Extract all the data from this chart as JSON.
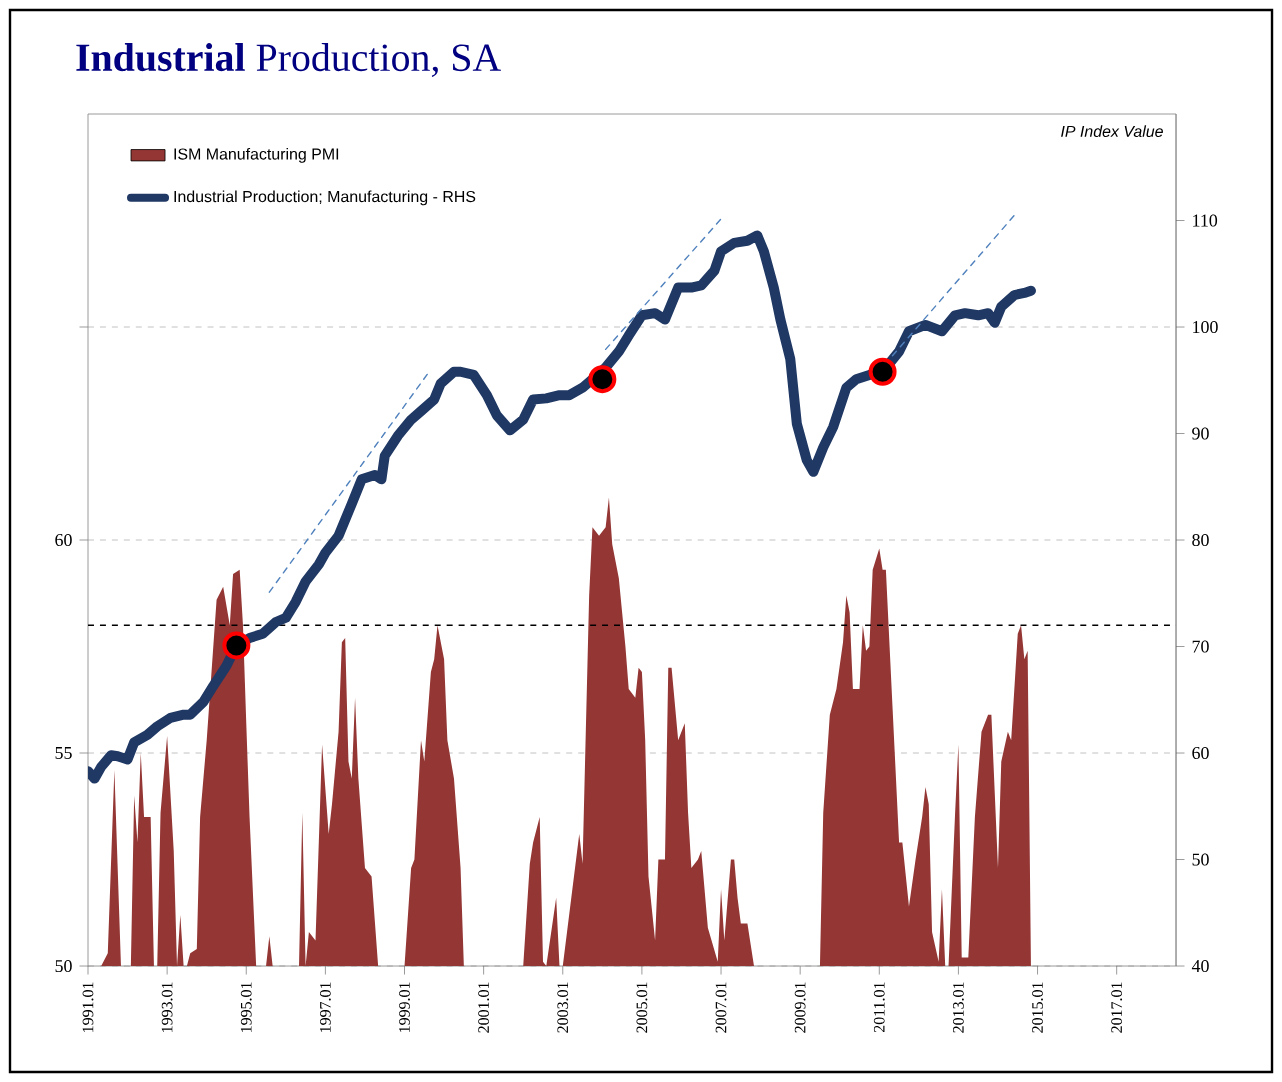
{
  "chart_data": {
    "type": "area",
    "title": "**Industrial** Production, SA",
    "y2label": "IP Index Value",
    "xlim": [
      "1991-01",
      "2018-07"
    ],
    "xticks": [
      {
        "value": "1991-01",
        "label": "1991.01"
      },
      {
        "value": "1993-01",
        "label": "1993.01"
      },
      {
        "value": "1995-01",
        "label": "1995.01"
      },
      {
        "value": "1997-01",
        "label": "1997.01"
      },
      {
        "value": "1999-01",
        "label": "1999.01"
      },
      {
        "value": "2001-01",
        "label": "2001.01"
      },
      {
        "value": "2003-01",
        "label": "2003.01"
      },
      {
        "value": "2005-01",
        "label": "2005.01"
      },
      {
        "value": "2007-01",
        "label": "2007.01"
      },
      {
        "value": "2009-01",
        "label": "2009.01"
      },
      {
        "value": "2011-01",
        "label": "2011.01"
      },
      {
        "value": "2013-01",
        "label": "2013.01"
      },
      {
        "value": "2015-01",
        "label": "2015.01"
      },
      {
        "value": "2017-01",
        "label": "2017.01"
      }
    ],
    "ylim": [
      50,
      70
    ],
    "yticks": [
      50,
      55,
      60,
      {
        "value": 65,
        "label": null
      }
    ],
    "y2lim": [
      40,
      120
    ],
    "y2ticks": [
      40,
      50,
      60,
      70,
      80,
      90,
      100,
      110
    ],
    "grid": "y",
    "legend": "top left",
    "ref_lines": [
      {
        "axis": "y",
        "value": 58,
        "color": "#000000",
        "line_style": "dashed"
      }
    ],
    "series": [
      {
        "name": "ISM Manufacturing PMI",
        "color": "#943634",
        "x": [
          "1991-05",
          "1991-07",
          "1991-09",
          "1991-11",
          "1992-02",
          "1992-03",
          "1992-04",
          "1992-05",
          "1992-06",
          "1992-08",
          "1992-09",
          "1992-10",
          "1992-11",
          "1993-01",
          "1993-03",
          "1993-04",
          "1993-05",
          "1993-06",
          "1993-07",
          "1993-08",
          "1993-10",
          "1993-11",
          "1994-01",
          "1994-04",
          "1994-06",
          "1994-08",
          "1994-09",
          "1994-11",
          "1994-12",
          "1995-01",
          "1995-02",
          "1995-04",
          "1995-07",
          "1995-08",
          "1995-09",
          "1996-05",
          "1996-06",
          "1996-07",
          "1996-08",
          "1996-10",
          "1996-12",
          "1997-02",
          "1997-03",
          "1997-05",
          "1997-06",
          "1997-07",
          "1997-08",
          "1997-09",
          "1997-10",
          "1997-11",
          "1998-01",
          "1998-03",
          "1998-05",
          "1999-01",
          "1999-03",
          "1999-04",
          "1999-06",
          "1999-07",
          "1999-09",
          "1999-10",
          "1999-11",
          "2000-01",
          "2000-02",
          "2000-04",
          "2000-06",
          "2000-07",
          "2002-01",
          "2002-03",
          "2002-04",
          "2002-06",
          "2002-07",
          "2002-08",
          "2002-11",
          "2002-12",
          "2003-01",
          "2003-06",
          "2003-07",
          "2003-09",
          "2003-10",
          "2003-12",
          "2004-02",
          "2004-03",
          "2004-04",
          "2004-06",
          "2004-08",
          "2004-09",
          "2004-11",
          "2004-12",
          "2005-01",
          "2005-02",
          "2005-03",
          "2005-05",
          "2005-06",
          "2005-08",
          "2005-09",
          "2005-10",
          "2005-12",
          "2006-02",
          "2006-03",
          "2006-04",
          "2006-06",
          "2006-07",
          "2006-09",
          "2006-12",
          "2007-01",
          "2007-02",
          "2007-04",
          "2007-05",
          "2007-06",
          "2007-07",
          "2007-09",
          "2007-11",
          "2009-07",
          "2009-08",
          "2009-10",
          "2009-12",
          "2010-02",
          "2010-03",
          "2010-04",
          "2010-05",
          "2010-07",
          "2010-08",
          "2010-09",
          "2010-10",
          "2010-11",
          "2011-01",
          "2011-02",
          "2011-03",
          "2011-05",
          "2011-07",
          "2011-08",
          "2011-10",
          "2011-12",
          "2012-02",
          "2012-03",
          "2012-04",
          "2012-05",
          "2012-07",
          "2012-08",
          "2012-09",
          "2012-10",
          "2012-12",
          "2013-01",
          "2013-02",
          "2013-04",
          "2013-06",
          "2013-08",
          "2013-10",
          "2013-11",
          "2014-01",
          "2014-02",
          "2014-04",
          "2014-05",
          "2014-07",
          "2014-08",
          "2014-09",
          "2014-10",
          "2014-11"
        ],
        "values": [
          50,
          50.3,
          54.6,
          50,
          50,
          54.0,
          52.9,
          55.0,
          53.5,
          53.5,
          50,
          50,
          53.6,
          55.4,
          52.7,
          50,
          51.2,
          50,
          50,
          50.3,
          50.4,
          53.5,
          55.3,
          58.6,
          58.9,
          58.0,
          59.2,
          59.3,
          58.0,
          55.7,
          53.5,
          50,
          50,
          50.7,
          50,
          50,
          53.6,
          50,
          50.8,
          50.6,
          55.2,
          53.1,
          53.8,
          55.5,
          57.6,
          57.7,
          54.8,
          54.4,
          56.3,
          54.4,
          52.3,
          52.1,
          50,
          50,
          52.3,
          52.5,
          55.3,
          54.8,
          56.9,
          57.2,
          58.0,
          57.2,
          55.3,
          54.4,
          52.3,
          50,
          50,
          52.4,
          52.9,
          53.5,
          50.1,
          50,
          51.6,
          50,
          50,
          53.1,
          52.4,
          58.7,
          60.3,
          60.1,
          60.3,
          61.0,
          59.9,
          59.1,
          57.5,
          56.5,
          56.3,
          57.0,
          56.9,
          55.3,
          52.1,
          50.6,
          52.5,
          52.5,
          57.0,
          57.0,
          55.3,
          55.7,
          53.6,
          52.3,
          52.5,
          52.7,
          50.9,
          50.1,
          51.8,
          50.6,
          52.5,
          52.5,
          51.6,
          51.0,
          51.0,
          50,
          50,
          53.6,
          55.9,
          56.5,
          57.6,
          58.7,
          58.3,
          56.5,
          56.5,
          58.0,
          57.4,
          57.5,
          59.3,
          59.8,
          59.3,
          59.3,
          56.1,
          52.9,
          52.9,
          51.4,
          52.5,
          53.5,
          54.2,
          53.8,
          50.8,
          50.1,
          51.8,
          50,
          50,
          53.6,
          55.2,
          50.2,
          50.2,
          53.5,
          55.5,
          55.9,
          55.9,
          52.3,
          54.8,
          55.5,
          55.3,
          57.8,
          58.0,
          57.2,
          57.4,
          50
        ]
      },
      {
        "name": "Industrial Production; Manufacturing - RHS",
        "type": "line",
        "axis": "y2",
        "color": "#1f3864",
        "x": [
          "1991-01",
          "1991-03",
          "1991-05",
          "1991-08",
          "1991-10",
          "1992-01",
          "1992-03",
          "1992-07",
          "1992-10",
          "1993-02",
          "1993-06",
          "1993-08",
          "1993-12",
          "1994-03",
          "1994-07",
          "1994-10",
          "1995-02",
          "1995-06",
          "1995-10",
          "1996-01",
          "1996-04",
          "1996-07",
          "1996-11",
          "1997-01",
          "1997-05",
          "1997-09",
          "1997-12",
          "1998-04",
          "1998-06",
          "1998-07",
          "1998-11",
          "1999-03",
          "1999-06",
          "1999-10",
          "1999-12",
          "2000-04",
          "2000-06",
          "2000-10",
          "2001-02",
          "2001-05",
          "2001-09",
          "2002-01",
          "2002-04",
          "2002-08",
          "2002-12",
          "2003-03",
          "2003-07",
          "2003-10",
          "2004-02",
          "2004-06",
          "2004-09",
          "2005-01",
          "2005-05",
          "2005-08",
          "2005-12",
          "2006-04",
          "2006-07",
          "2006-11",
          "2007-01",
          "2007-05",
          "2007-09",
          "2007-12",
          "2008-02",
          "2008-05",
          "2008-07",
          "2008-10",
          "2008-12",
          "2009-03",
          "2009-05",
          "2009-08",
          "2009-11",
          "2010-03",
          "2010-06",
          "2010-10",
          "2011-02",
          "2011-07",
          "2011-10",
          "2012-03",
          "2012-08",
          "2012-12",
          "2013-03",
          "2013-07",
          "2013-10",
          "2013-12",
          "2014-02",
          "2014-06",
          "2014-09",
          "2014-11"
        ],
        "values": [
          58.3,
          57.6,
          58.7,
          59.8,
          59.7,
          59.4,
          61.0,
          61.7,
          62.5,
          63.3,
          63.6,
          63.6,
          64.8,
          66.3,
          68.2,
          70.1,
          70.8,
          71.2,
          72.3,
          72.7,
          74.2,
          76.1,
          77.7,
          78.8,
          80.4,
          83.4,
          85.7,
          86.1,
          85.7,
          87.9,
          89.8,
          91.3,
          92.1,
          93.2,
          94.7,
          95.8,
          95.8,
          95.5,
          93.6,
          91.7,
          90.3,
          91.3,
          93.2,
          93.3,
          93.6,
          93.6,
          94.3,
          95.1,
          96.2,
          97.7,
          99.2,
          101.1,
          101.3,
          100.7,
          103.7,
          103.7,
          103.9,
          105.3,
          107.1,
          107.9,
          108.1,
          108.6,
          107.1,
          103.7,
          100.7,
          97.0,
          90.9,
          87.5,
          86.4,
          88.7,
          90.6,
          94.3,
          95.1,
          95.5,
          95.8,
          97.7,
          99.6,
          100.2,
          99.6,
          101.1,
          101.3,
          101.1,
          101.3,
          100.4,
          101.9,
          103.0,
          103.2,
          103.4
        ]
      },
      {
        "type": "scatter",
        "axis": "y2",
        "color": "#ff0000",
        "marker": "circle",
        "x": [
          "1994-10",
          "2004-01",
          "2011-02"
        ],
        "values": [
          70.1,
          95.1,
          95.8
        ]
      },
      {
        "type": "line",
        "axis": "y2",
        "color": "#4f81bd",
        "line_style": "dashed",
        "x": [
          "1995-08",
          "1999-08"
        ],
        "values": [
          75.1,
          95.6
        ]
      },
      {
        "type": "line",
        "axis": "y2",
        "color": "#4f81bd",
        "line_style": "dashed",
        "x": [
          "2004-02",
          "2007-02"
        ],
        "values": [
          97.9,
          110.5
        ]
      },
      {
        "type": "line",
        "axis": "y2",
        "color": "#4f81bd",
        "line_style": "dashed",
        "x": [
          "2011-05",
          "2014-06"
        ],
        "values": [
          97.3,
          110.5
        ]
      }
    ]
  }
}
